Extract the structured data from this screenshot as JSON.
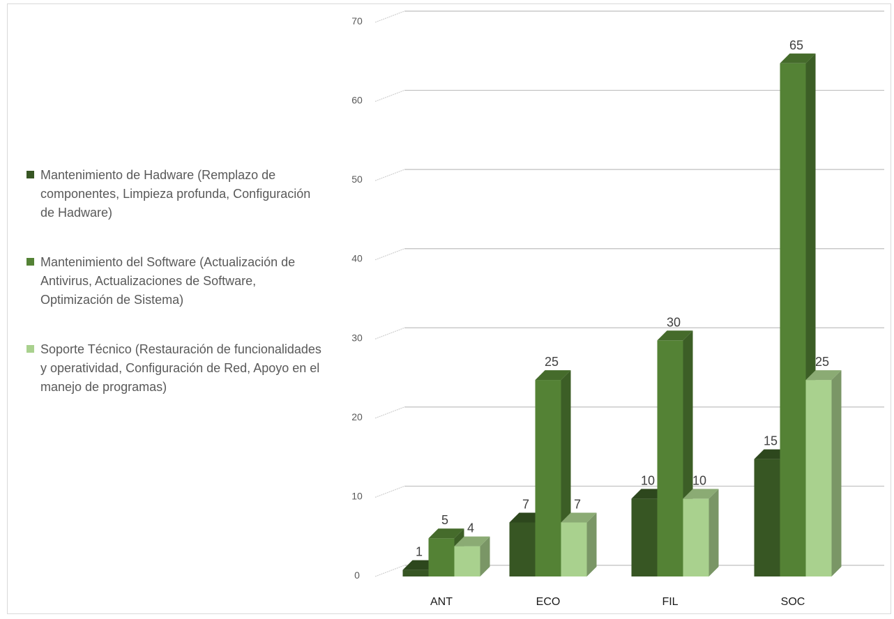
{
  "chart_data": {
    "type": "bar",
    "categories": [
      "ANT",
      "ECO",
      "FIL",
      "SOC"
    ],
    "series": [
      {
        "name": "Mantenimiento de Hadware (Remplazo de componentes, Limpieza profunda, Configuración de Hadware)",
        "values": [
          1,
          7,
          10,
          15
        ],
        "color": "#375623"
      },
      {
        "name": "Mantenimiento del Software (Actualización de Antivirus, Actualizaciones de Software, Optimización de Sistema)",
        "values": [
          5,
          25,
          30,
          65
        ],
        "color": "#548235"
      },
      {
        "name": "Soporte Técnico (Restauración de funcionalidades y operatividad, Configuración de Red, Apoyo en el manejo de programas)",
        "values": [
          4,
          7,
          10,
          25
        ],
        "color": "#a9d18e"
      }
    ],
    "yticks": [
      "0",
      "10",
      "20",
      "30",
      "40",
      "50",
      "60",
      "70"
    ],
    "ylim": [
      0,
      70
    ],
    "grid": true,
    "legend_position": "left",
    "data_labels": true
  }
}
